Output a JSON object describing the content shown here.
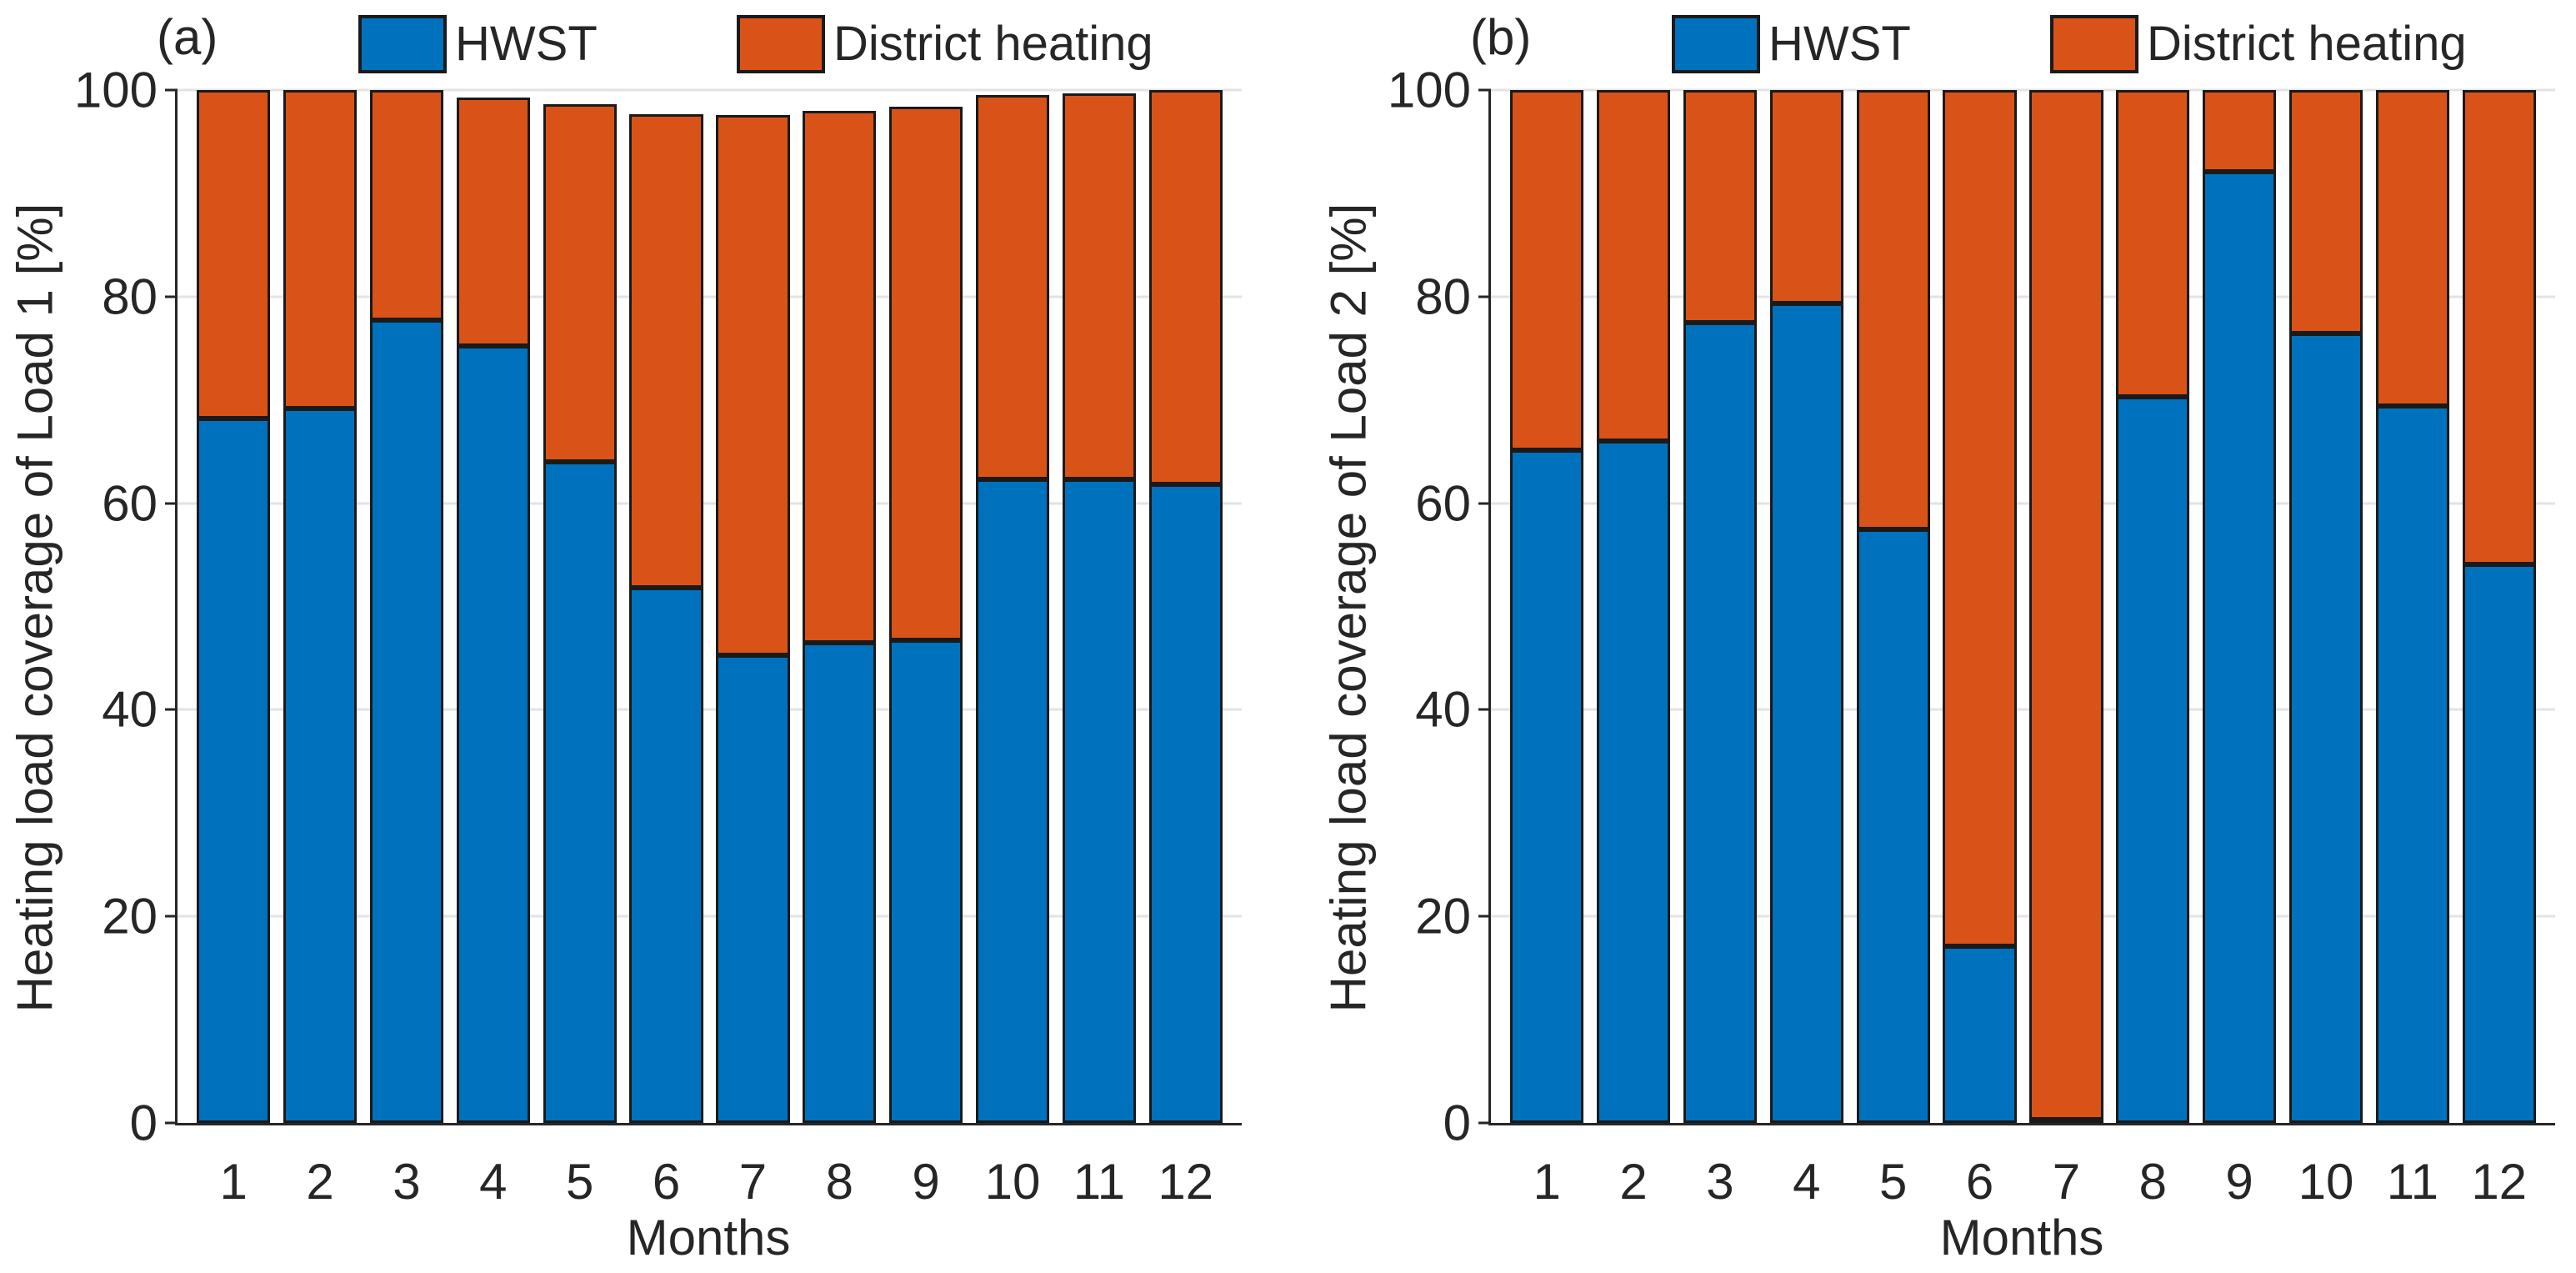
{
  "figure": {
    "background": "#ffffff",
    "grid_color": "#e3e3e3",
    "axis_color": "#262626",
    "bar_edge_color": "#1a1a1a"
  },
  "chart_data": [
    {
      "type": "bar",
      "stacked": true,
      "panel_label": "(a)",
      "xlabel": "Months",
      "ylabel": "Heating load coverage of Load 1 [%]",
      "categories": [
        "1",
        "2",
        "3",
        "4",
        "5",
        "6",
        "7",
        "8",
        "9",
        "10",
        "11",
        "12"
      ],
      "series": [
        {
          "name": "HWST",
          "color": "#0072BD",
          "values": [
            68.2,
            69.2,
            77.7,
            75.2,
            64.0,
            51.8,
            45.3,
            46.5,
            46.7,
            62.3,
            62.3,
            61.8
          ]
        },
        {
          "name": "District heating",
          "color": "#D95319",
          "values": [
            31.8,
            30.8,
            22.3,
            24.1,
            34.6,
            45.9,
            52.3,
            51.5,
            51.7,
            37.2,
            37.4,
            38.2
          ]
        }
      ],
      "ylim": [
        0,
        100
      ],
      "yticks": [
        0,
        20,
        40,
        60,
        80,
        100
      ],
      "grid": true,
      "legend_position": "top"
    },
    {
      "type": "bar",
      "stacked": true,
      "panel_label": "(b)",
      "xlabel": "Months",
      "ylabel": "Heating load coverage of Load 2 [%]",
      "categories": [
        "1",
        "2",
        "3",
        "4",
        "5",
        "6",
        "7",
        "8",
        "9",
        "10",
        "11",
        "12"
      ],
      "series": [
        {
          "name": "HWST",
          "color": "#0072BD",
          "values": [
            65.1,
            66.0,
            77.5,
            79.3,
            57.5,
            17.1,
            0.3,
            70.3,
            92.1,
            76.4,
            69.4,
            54.1
          ]
        },
        {
          "name": "District heating",
          "color": "#D95319",
          "values": [
            34.9,
            34.0,
            22.5,
            20.7,
            42.5,
            82.9,
            99.7,
            29.7,
            7.9,
            23.6,
            30.6,
            45.9
          ]
        }
      ],
      "ylim": [
        0,
        100
      ],
      "yticks": [
        0,
        20,
        40,
        60,
        80,
        100
      ],
      "grid": true,
      "legend_position": "top"
    }
  ]
}
